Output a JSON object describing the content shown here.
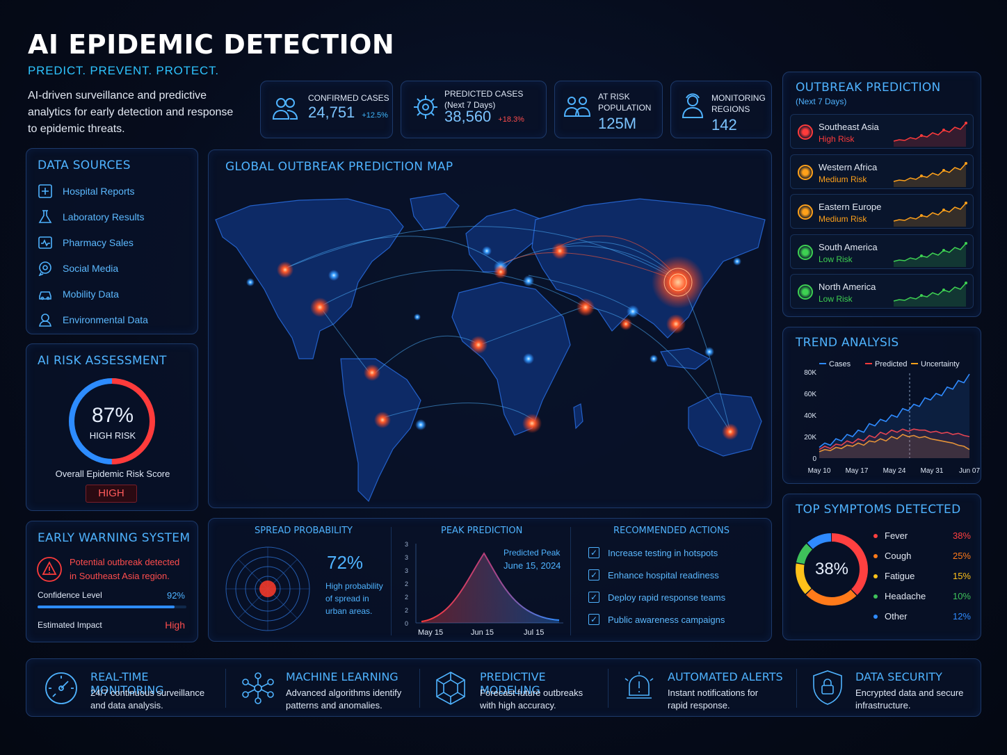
{
  "header": {
    "title": "AI EPIDEMIC DETECTION",
    "tagline": "PREDICT. PREVENT. PROTECT.",
    "description": "AI-driven surveillance and predictive analytics for early detection and response to epidemic threats."
  },
  "stats": [
    {
      "label1": "CONFIRMED CASES",
      "label2": "",
      "value": "24,751",
      "change": "+12.5%",
      "change_color": "#3fb8ff",
      "icon": "people-icon"
    },
    {
      "label1": "PREDICTED CASES",
      "label2": "(Next 7 Days)",
      "value": "38,560",
      "change": "+18.3%",
      "change_color": "#ff4d4d",
      "icon": "virus-icon"
    },
    {
      "label1": "AT RISK",
      "label2": "POPULATION",
      "value": "125M",
      "change": "",
      "change_color": "",
      "icon": "group-icon"
    },
    {
      "label1": "MONITORING",
      "label2": "REGIONS",
      "value": "142",
      "change": "",
      "change_color": "",
      "icon": "person-icon"
    }
  ],
  "data_sources": {
    "title": "DATA SOURCES",
    "items": [
      {
        "label": "Hospital Reports",
        "icon": "hospital-icon"
      },
      {
        "label": "Laboratory Results",
        "icon": "lab-icon"
      },
      {
        "label": "Pharmacy Sales",
        "icon": "pharmacy-icon"
      },
      {
        "label": "Social Media",
        "icon": "chat-icon"
      },
      {
        "label": "Mobility Data",
        "icon": "car-icon"
      },
      {
        "label": "Environmental Data",
        "icon": "environment-icon"
      }
    ]
  },
  "risk": {
    "title": "AI RISK ASSESSMENT",
    "percent": "87%",
    "value": 0.87,
    "level": "HIGH RISK",
    "caption": "Overall Epidemic Risk Score",
    "badge": "HIGH"
  },
  "warning": {
    "title": "EARLY WARNING SYSTEM",
    "message_line1": "Potential outbreak detected",
    "message_line2": "in Southeast Asia region.",
    "confidence_label": "Confidence Level",
    "confidence_value": "92%",
    "confidence": 0.92,
    "impact_label": "Estimated Impact",
    "impact_value": "High"
  },
  "map": {
    "title": "GLOBAL OUTBREAK PREDICTION MAP"
  },
  "spread": {
    "title": "SPREAD PROBABILITY",
    "percent": "72%",
    "text": "High probability of spread in urban areas."
  },
  "peak": {
    "title": "PEAK PREDICTION",
    "annotation_line1": "Predicted Peak",
    "annotation_line2": "June 15, 2024",
    "yticks": [
      "3",
      "3",
      "3",
      "2",
      "2",
      "2",
      "0"
    ],
    "xticks": [
      "May 15",
      "Jun 15",
      "Jul 15"
    ]
  },
  "actions": {
    "title": "RECOMMENDED ACTIONS",
    "items": [
      "Increase testing in hotspots",
      "Enhance hospital readiness",
      "Deploy rapid response teams",
      "Public awareness campaigns"
    ]
  },
  "outbreak": {
    "title": "OUTBREAK PREDICTION",
    "subtitle": "(Next 7 Days)",
    "regions": [
      {
        "name": "Southeast Asia",
        "risk": "High Risk",
        "color": "#ff3b3b"
      },
      {
        "name": "Western Africa",
        "risk": "Medium Risk",
        "color": "#ffa11a"
      },
      {
        "name": "Eastern Europe",
        "risk": "Medium Risk",
        "color": "#ffa11a"
      },
      {
        "name": "South America",
        "risk": "Low Risk",
        "color": "#3ed152"
      },
      {
        "name": "North America",
        "risk": "Low Risk",
        "color": "#3ed152"
      }
    ]
  },
  "chart_data": {
    "type": "line",
    "title": "TREND ANALYSIS",
    "legend": [
      "Cases",
      "Predicted",
      "Uncertainty"
    ],
    "yticks": [
      "80K",
      "60K",
      "40K",
      "20K",
      "0"
    ],
    "xticks": [
      "May 10",
      "May 17",
      "May 24",
      "May 31",
      "Jun 07"
    ],
    "ylim": [
      0,
      80000
    ],
    "series": [
      {
        "name": "Cases",
        "color": "#2f8bff",
        "values": [
          10000,
          14000,
          12000,
          18000,
          16000,
          22000,
          20000,
          26000,
          24000,
          32000,
          30000,
          36000,
          34000,
          40000,
          38000,
          46000,
          44000,
          50000,
          48000,
          56000,
          54000,
          60000,
          58000,
          66000,
          64000,
          72000,
          70000,
          78000
        ]
      },
      {
        "name": "Predicted",
        "color": "#ff3b3b",
        "values": [
          8000,
          11000,
          9000,
          13000,
          12000,
          16000,
          14000,
          18000,
          16000,
          21000,
          19000,
          24000,
          22000,
          26000,
          24000,
          27000,
          25000,
          27000,
          26000,
          26000,
          24000,
          25000,
          23000,
          24000,
          22000,
          23000,
          21000,
          20000
        ]
      },
      {
        "name": "Uncertainty",
        "color": "#ffa11a",
        "values": [
          6000,
          8000,
          7000,
          10000,
          9000,
          12000,
          11000,
          14000,
          12000,
          16000,
          15000,
          18000,
          16000,
          20000,
          18000,
          22000,
          20000,
          21000,
          19000,
          20000,
          18000,
          17000,
          16000,
          15000,
          14000,
          12000,
          11000,
          8000
        ]
      }
    ]
  },
  "symptoms": {
    "title": "TOP SYMPTOMS DETECTED",
    "center": "38%",
    "items": [
      {
        "name": "Fever",
        "pct": "38%",
        "value": 38,
        "color": "#ff4040"
      },
      {
        "name": "Cough",
        "pct": "25%",
        "value": 25,
        "color": "#ff7a1a"
      },
      {
        "name": "Fatigue",
        "pct": "15%",
        "value": 15,
        "color": "#ffc21a"
      },
      {
        "name": "Headache",
        "pct": "10%",
        "value": 10,
        "color": "#3ec15a"
      },
      {
        "name": "Other",
        "pct": "12%",
        "value": 12,
        "color": "#2f8bff"
      }
    ]
  },
  "features": [
    {
      "title": "REAL-TIME MONITORING",
      "line1": "24/7 continuous surveillance",
      "line2": "and data analysis.",
      "icon": "gauge-icon"
    },
    {
      "title": "MACHINE LEARNING",
      "line1": "Advanced algorithms identify",
      "line2": "patterns and anomalies.",
      "icon": "network-icon"
    },
    {
      "title": "PREDICTIVE MODELING",
      "line1": "Forecast future outbreaks",
      "line2": "with high accuracy.",
      "icon": "hexagon-network-icon"
    },
    {
      "title": "AUTOMATED ALERTS",
      "line1": "Instant notifications for",
      "line2": "rapid response.",
      "icon": "alarm-icon"
    },
    {
      "title": "DATA SECURITY",
      "line1": "Encrypted data and secure",
      "line2": "infrastructure.",
      "icon": "shield-icon"
    }
  ]
}
